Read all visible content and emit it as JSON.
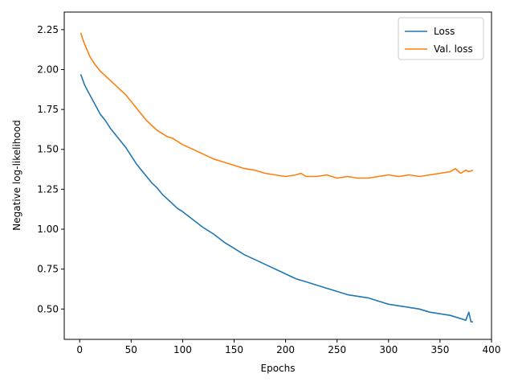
{
  "chart_data": {
    "type": "line",
    "xlabel": "Epochs",
    "ylabel": "Negative log-likelihood",
    "xlim": [
      -15,
      400
    ],
    "ylim": [
      0.31,
      2.36
    ],
    "xticks": [
      0,
      50,
      100,
      150,
      200,
      250,
      300,
      350,
      400
    ],
    "yticks": [
      0.5,
      0.75,
      1.0,
      1.25,
      1.5,
      1.75,
      2.0,
      2.25
    ],
    "ytick_labels": [
      "0.50",
      "0.75",
      "1.00",
      "1.25",
      "1.50",
      "1.75",
      "2.00",
      "2.25"
    ],
    "grid": false,
    "legend_position": "top-right",
    "series": [
      {
        "name": "Loss",
        "color": "#1f77b4",
        "x": [
          1,
          5,
          10,
          15,
          20,
          25,
          30,
          35,
          40,
          45,
          50,
          55,
          60,
          65,
          70,
          75,
          80,
          85,
          90,
          95,
          100,
          110,
          120,
          130,
          140,
          150,
          160,
          170,
          180,
          190,
          200,
          210,
          220,
          230,
          240,
          250,
          260,
          270,
          280,
          290,
          300,
          310,
          320,
          330,
          340,
          350,
          360,
          365,
          370,
          375,
          378,
          380,
          382
        ],
        "y": [
          1.97,
          1.9,
          1.84,
          1.78,
          1.72,
          1.68,
          1.63,
          1.59,
          1.55,
          1.51,
          1.46,
          1.41,
          1.37,
          1.33,
          1.29,
          1.26,
          1.22,
          1.19,
          1.16,
          1.13,
          1.11,
          1.06,
          1.01,
          0.97,
          0.92,
          0.88,
          0.84,
          0.81,
          0.78,
          0.75,
          0.72,
          0.69,
          0.67,
          0.65,
          0.63,
          0.61,
          0.59,
          0.58,
          0.57,
          0.55,
          0.53,
          0.52,
          0.51,
          0.5,
          0.48,
          0.47,
          0.46,
          0.45,
          0.44,
          0.43,
          0.48,
          0.42,
          0.42
        ]
      },
      {
        "name": "Val. loss",
        "color": "#ff7f0e",
        "x": [
          1,
          3,
          6,
          10,
          15,
          20,
          25,
          30,
          35,
          40,
          45,
          50,
          55,
          60,
          65,
          70,
          75,
          80,
          85,
          90,
          95,
          100,
          110,
          120,
          130,
          140,
          150,
          160,
          170,
          180,
          190,
          200,
          210,
          215,
          220,
          230,
          240,
          250,
          260,
          270,
          280,
          290,
          300,
          310,
          320,
          330,
          340,
          350,
          360,
          365,
          370,
          375,
          378,
          382
        ],
        "y": [
          2.23,
          2.19,
          2.14,
          2.08,
          2.03,
          1.99,
          1.96,
          1.93,
          1.9,
          1.87,
          1.84,
          1.8,
          1.76,
          1.72,
          1.68,
          1.65,
          1.62,
          1.6,
          1.58,
          1.57,
          1.55,
          1.53,
          1.5,
          1.47,
          1.44,
          1.42,
          1.4,
          1.38,
          1.37,
          1.35,
          1.34,
          1.33,
          1.34,
          1.35,
          1.33,
          1.33,
          1.34,
          1.32,
          1.33,
          1.32,
          1.32,
          1.33,
          1.34,
          1.33,
          1.34,
          1.33,
          1.34,
          1.35,
          1.36,
          1.38,
          1.35,
          1.37,
          1.36,
          1.37
        ]
      }
    ]
  }
}
